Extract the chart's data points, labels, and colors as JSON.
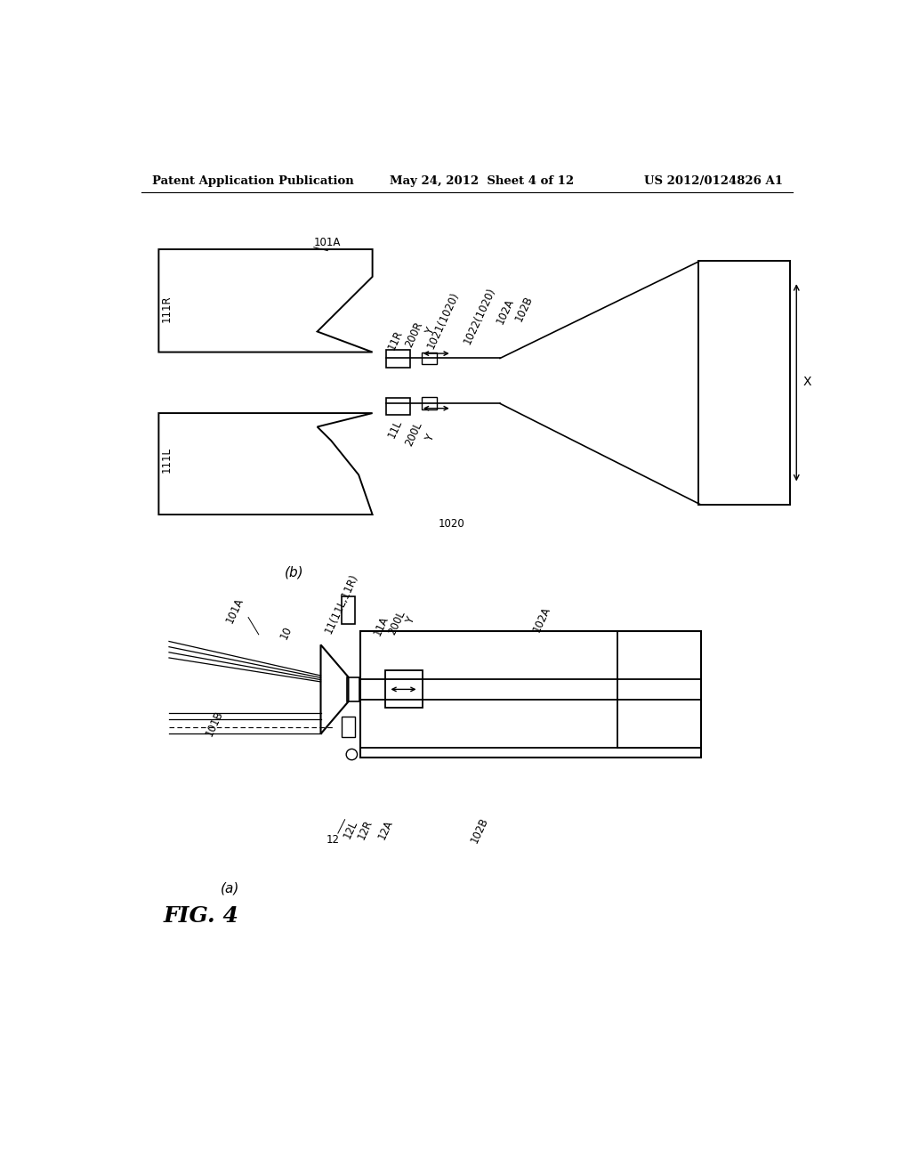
{
  "background_color": "#ffffff",
  "header_left": "Patent Application Publication",
  "header_center": "May 24, 2012  Sheet 4 of 12",
  "header_right": "US 2012/0124826 A1",
  "fig_label": "FIG. 4"
}
